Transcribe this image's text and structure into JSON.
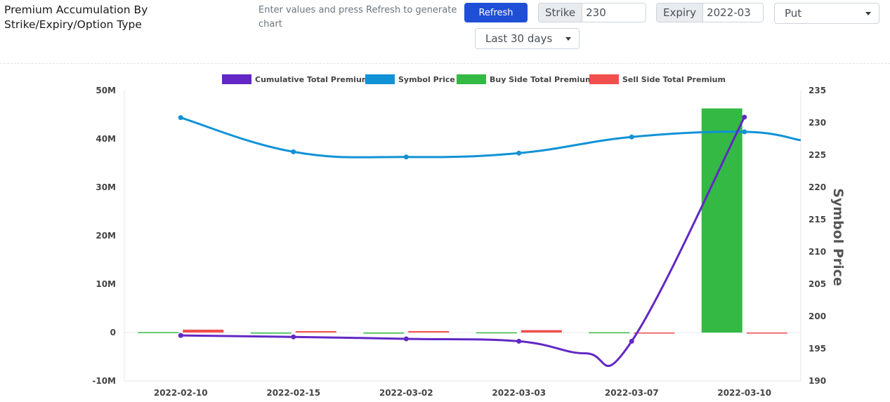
{
  "header": {
    "title_line1": "Premium Accumulation By",
    "title_line2": "Strike/Expiry/Option Type",
    "instructions": "Enter values and press Refresh to generate chart",
    "refresh_label": "Refresh",
    "strike_label": "Strike",
    "strike_value": "230",
    "expiry_label": "Expiry",
    "expiry_value": "2022-03",
    "option_type": "Put",
    "period": "Last 30 days"
  },
  "colors": {
    "cumulative": "#6227c5",
    "symbol_price": "#1192d6",
    "buy": "#34b945",
    "sell": "#f14e4e"
  },
  "chart_data": {
    "type": "bar",
    "categories": [
      "2022-02-10",
      "2022-02-15",
      "2022-03-02",
      "2022-03-03",
      "2022-03-07",
      "2022-03-10"
    ],
    "legend_position": "top-center",
    "y_left": {
      "ticks": [
        "-10M",
        "0",
        "10M",
        "20M",
        "30M",
        "40M",
        "50M"
      ],
      "range": [
        -10000000,
        50000000
      ]
    },
    "y_right": {
      "label": "Symbol Price",
      "ticks": [
        190,
        195,
        200,
        205,
        210,
        215,
        220,
        225,
        230,
        235
      ],
      "range": [
        190,
        235
      ]
    },
    "series": [
      {
        "name": "Cumulative Total Premium",
        "kind": "line",
        "axis": "left",
        "values": [
          -600000,
          -900000,
          -1300000,
          -1800000,
          -1800000,
          44500000
        ],
        "dip_between": {
          "after_index": 3,
          "value": -4300000
        }
      },
      {
        "name": "Symbol Price",
        "kind": "line",
        "axis": "right",
        "values": [
          230.8,
          225.5,
          224.7,
          225.3,
          227.8,
          228.6
        ],
        "trailing_value": 227.3
      },
      {
        "name": "Buy Side Total Premium",
        "kind": "bar",
        "axis": "left",
        "values": [
          100000,
          0,
          0,
          50000,
          60000,
          46300000
        ]
      },
      {
        "name": "Sell Side Total Premium",
        "kind": "bar",
        "axis": "left",
        "values": [
          600000,
          300000,
          300000,
          500000,
          0,
          0
        ]
      }
    ]
  }
}
